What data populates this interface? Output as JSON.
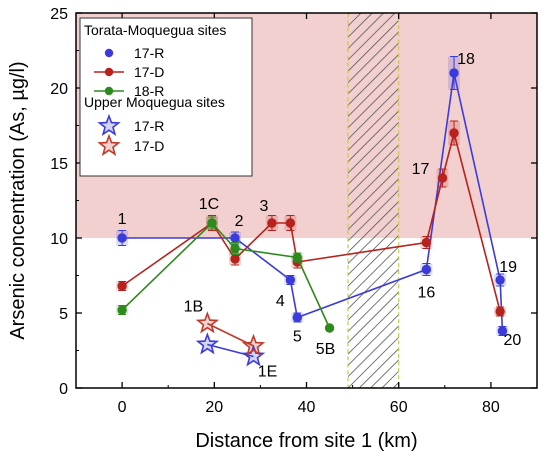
{
  "chart_data": {
    "type": "line",
    "title": "",
    "xlabel": "Distance from site 1 (km)",
    "ylabel": "Arsenic concentration (As, µg/l)",
    "xlim": [
      -10,
      90
    ],
    "ylim": [
      0,
      25
    ],
    "xticks": [
      0,
      20,
      40,
      60,
      80
    ],
    "yticks": [
      0,
      5,
      10,
      15,
      20,
      25
    ],
    "shaded_band": {
      "y_from": 10,
      "y_to": 25,
      "color": "#f3d0d0"
    },
    "hatched_region": {
      "x_from": 49,
      "x_to": 60
    },
    "colors": {
      "blue": "#3b3bdb",
      "red": "#b8221c",
      "green": "#2f8a1e",
      "upper_blue": "#3b3bdb",
      "upper_red": "#c0392b"
    },
    "legend": {
      "placement": "top-left",
      "group1_title": "Torata-Moquegua sites",
      "group2_title": "Upper Moquegua sites"
    },
    "series": [
      {
        "name": "17-R",
        "group": "Torata-Moquegua sites",
        "marker": "circle",
        "color": "#3b3bdb",
        "points": [
          [
            0,
            10.0
          ],
          [
            24.5,
            10.0
          ],
          [
            36.5,
            7.2
          ],
          [
            38,
            4.7
          ],
          [
            66,
            7.9
          ],
          [
            72,
            21.0
          ],
          [
            82,
            7.2
          ],
          [
            82.5,
            3.8
          ]
        ],
        "errors": [
          0.5,
          0.4,
          0.3,
          0.3,
          0.4,
          1.1,
          0.4,
          0.3
        ]
      },
      {
        "name": "17-D",
        "group": "Torata-Moquegua sites",
        "marker": "circle",
        "color": "#b8221c",
        "points": [
          [
            0,
            6.8
          ],
          [
            19.5,
            11.0
          ],
          [
            24.5,
            8.6
          ],
          [
            32.5,
            11.0
          ],
          [
            36.5,
            11.0
          ],
          [
            38,
            8.4
          ],
          [
            66,
            9.7
          ],
          [
            69.5,
            14.0
          ],
          [
            72,
            17.0
          ],
          [
            82,
            5.1
          ]
        ],
        "errors": [
          0.3,
          0.5,
          0.4,
          0.5,
          0.5,
          0.4,
          0.4,
          0.6,
          0.8,
          0.3
        ]
      },
      {
        "name": "18-R",
        "group": "Torata-Moquegua sites",
        "marker": "circle",
        "color": "#2f8a1e",
        "points": [
          [
            0,
            5.2
          ],
          [
            19.5,
            11.0
          ],
          [
            24.5,
            9.3
          ],
          [
            38,
            8.7
          ],
          [
            45,
            4.0
          ]
        ],
        "errors": [
          0.3,
          0.4,
          0.4,
          0.3,
          0.0
        ]
      },
      {
        "name": "17-R",
        "group": "Upper Moquegua sites",
        "marker": "star",
        "color": "#3b3bdb",
        "points": [
          [
            18.5,
            2.9
          ],
          [
            28.5,
            2.1
          ]
        ]
      },
      {
        "name": "17-D",
        "group": "Upper Moquegua sites",
        "marker": "star",
        "color": "#c0392b",
        "points": [
          [
            18.5,
            4.3
          ],
          [
            28.5,
            2.8
          ]
        ]
      }
    ],
    "annotations": [
      {
        "text": "1",
        "x": 0,
        "y": 10.0
      },
      {
        "text": "1C",
        "x": 19.5,
        "y": 11.0
      },
      {
        "text": "2",
        "x": 24.5,
        "y": 10.0
      },
      {
        "text": "3",
        "x": 32.5,
        "y": 11.0
      },
      {
        "text": "4",
        "x": 36.5,
        "y": 7.2
      },
      {
        "text": "5",
        "x": 38,
        "y": 4.7
      },
      {
        "text": "5B",
        "x": 45,
        "y": 4.0
      },
      {
        "text": "1B",
        "x": 18.5,
        "y": 4.3
      },
      {
        "text": "1E",
        "x": 28.5,
        "y": 2.1
      },
      {
        "text": "16",
        "x": 66,
        "y": 7.9
      },
      {
        "text": "17",
        "x": 69.5,
        "y": 14.0
      },
      {
        "text": "18",
        "x": 72,
        "y": 21.0
      },
      {
        "text": "19",
        "x": 82,
        "y": 7.2
      },
      {
        "text": "20",
        "x": 82.5,
        "y": 3.8
      }
    ]
  }
}
